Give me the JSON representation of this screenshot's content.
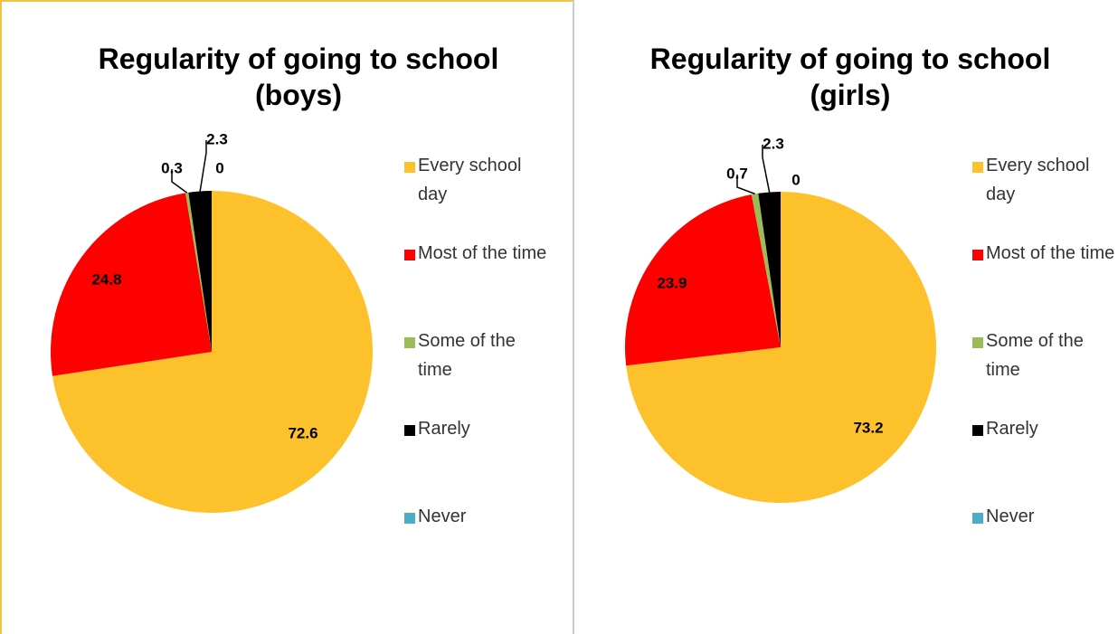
{
  "chart_data": [
    {
      "type": "pie",
      "title": "Regularity of going to school (boys)",
      "categories": [
        "Every school day",
        "Most of the time",
        "Some of the time",
        "Rarely",
        "Never"
      ],
      "values": [
        72.6,
        24.8,
        0.3,
        2.3,
        0
      ],
      "colors": [
        "#fdc12b",
        "#ff0000",
        "#9bbb59",
        "#000000",
        "#4bacc6"
      ]
    },
    {
      "type": "pie",
      "title": "Regularity of going to school (girls)",
      "categories": [
        "Every school day",
        "Most of the time",
        "Some of the time",
        "Rarely",
        "Never"
      ],
      "values": [
        73.2,
        23.9,
        0.7,
        2.3,
        0
      ],
      "colors": [
        "#fdc12b",
        "#ff0000",
        "#9bbb59",
        "#000000",
        "#4bacc6"
      ]
    }
  ]
}
